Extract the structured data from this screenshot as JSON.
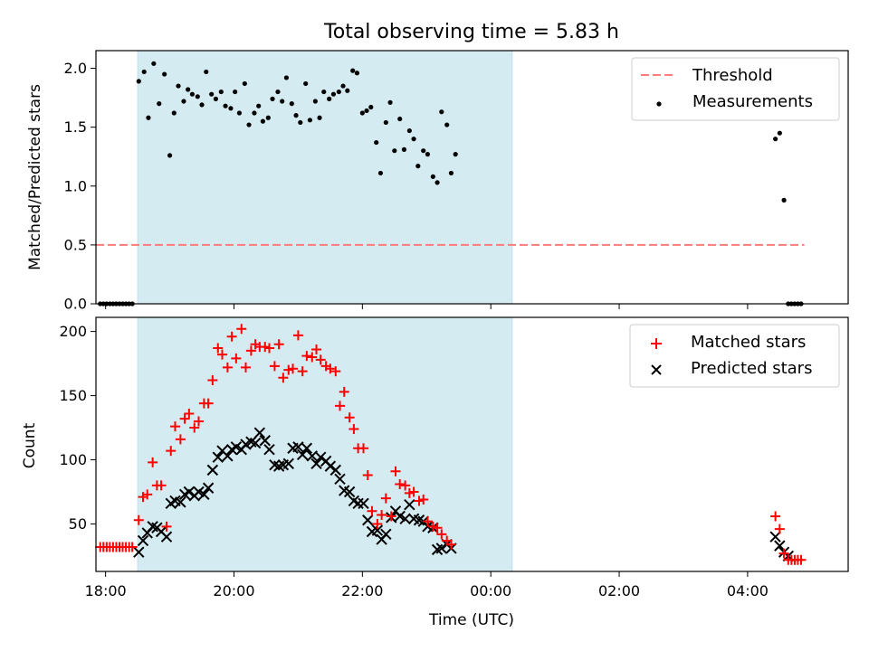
{
  "title": "Total observing time = 5.83 h",
  "xlabel": "Time (UTC)",
  "x_ticks": [
    "18:00",
    "20:00",
    "22:00",
    "00:00",
    "02:00",
    "04:00"
  ],
  "colors": {
    "observing_band": "#d4ebf1",
    "threshold": "#ff7a7a",
    "measurements": "#000000",
    "matched": "#ff0000",
    "predicted": "#000000"
  },
  "chart_data": [
    {
      "type": "scatter",
      "ylabel": "Matched/Predicted stars",
      "xlim": [
        "17:51",
        "05:34"
      ],
      "ylim": [
        0,
        2.15
      ],
      "y_ticks": [
        "0.0",
        "0.5",
        "1.0",
        "1.5",
        "2.0"
      ],
      "legend_position": "upper right",
      "observing_window": [
        "18:30",
        "00:20"
      ],
      "threshold": {
        "name": "Threshold",
        "value": 0.5,
        "x": [
          "17:51",
          "04:53"
        ]
      },
      "series": [
        {
          "name": "Measurements",
          "points": [
            [
              "17:55",
              0
            ],
            [
              "17:58",
              0
            ],
            [
              "18:01",
              0
            ],
            [
              "18:04",
              0
            ],
            [
              "18:07",
              0
            ],
            [
              "18:10",
              0
            ],
            [
              "18:13",
              0
            ],
            [
              "18:16",
              0
            ],
            [
              "18:19",
              0
            ],
            [
              "18:22",
              0
            ],
            [
              "18:25",
              0
            ],
            [
              "18:31",
              1.89
            ],
            [
              "18:36",
              1.97
            ],
            [
              "18:40",
              1.58
            ],
            [
              "18:45",
              2.04
            ],
            [
              "18:50",
              1.7
            ],
            [
              "18:55",
              1.95
            ],
            [
              "19:00",
              1.26
            ],
            [
              "19:04",
              1.62
            ],
            [
              "19:08",
              1.85
            ],
            [
              "19:13",
              1.72
            ],
            [
              "19:17",
              1.82
            ],
            [
              "19:21",
              1.78
            ],
            [
              "19:26",
              1.76
            ],
            [
              "19:30",
              1.69
            ],
            [
              "19:34",
              1.97
            ],
            [
              "19:39",
              1.78
            ],
            [
              "19:43",
              1.74
            ],
            [
              "19:48",
              1.8
            ],
            [
              "19:52",
              1.68
            ],
            [
              "19:57",
              1.66
            ],
            [
              "20:01",
              1.8
            ],
            [
              "20:05",
              1.62
            ],
            [
              "20:10",
              1.87
            ],
            [
              "20:14",
              1.52
            ],
            [
              "20:19",
              1.62
            ],
            [
              "20:23",
              1.68
            ],
            [
              "20:27",
              1.55
            ],
            [
              "20:32",
              1.58
            ],
            [
              "20:36",
              1.74
            ],
            [
              "20:41",
              1.8
            ],
            [
              "20:45",
              1.72
            ],
            [
              "20:49",
              1.92
            ],
            [
              "20:54",
              1.7
            ],
            [
              "20:58",
              1.6
            ],
            [
              "21:02",
              1.54
            ],
            [
              "21:07",
              1.87
            ],
            [
              "21:11",
              1.56
            ],
            [
              "21:16",
              1.72
            ],
            [
              "21:20",
              1.58
            ],
            [
              "21:24",
              1.8
            ],
            [
              "21:29",
              1.74
            ],
            [
              "21:33",
              1.78
            ],
            [
              "21:38",
              1.8
            ],
            [
              "21:42",
              1.85
            ],
            [
              "21:46",
              1.81
            ],
            [
              "21:51",
              1.98
            ],
            [
              "21:55",
              1.96
            ],
            [
              "22:00",
              1.62
            ],
            [
              "22:04",
              1.64
            ],
            [
              "22:08",
              1.67
            ],
            [
              "22:13",
              1.37
            ],
            [
              "22:17",
              1.11
            ],
            [
              "22:22",
              1.54
            ],
            [
              "22:26",
              1.71
            ],
            [
              "22:30",
              1.3
            ],
            [
              "22:35",
              1.57
            ],
            [
              "22:39",
              1.31
            ],
            [
              "22:44",
              1.47
            ],
            [
              "22:48",
              1.4
            ],
            [
              "22:52",
              1.17
            ],
            [
              "22:57",
              1.3
            ],
            [
              "23:01",
              1.27
            ],
            [
              "23:06",
              1.08
            ],
            [
              "23:10",
              1.03
            ],
            [
              "23:14",
              1.63
            ],
            [
              "23:19",
              1.52
            ],
            [
              "23:23",
              1.11
            ],
            [
              "23:27",
              1.27
            ],
            [
              "04:26",
              1.4
            ],
            [
              "04:30",
              1.45
            ],
            [
              "04:34",
              0.88
            ],
            [
              "04:38",
              0
            ],
            [
              "04:41",
              0
            ],
            [
              "04:44",
              0
            ],
            [
              "04:47",
              0
            ],
            [
              "04:50",
              0
            ]
          ]
        }
      ]
    },
    {
      "type": "scatter",
      "ylabel": "Count",
      "xlabel": "Time (UTC)",
      "xlim": [
        "17:51",
        "05:34"
      ],
      "ylim": [
        13,
        211
      ],
      "y_ticks": [
        "50",
        "100",
        "150",
        "200"
      ],
      "legend_position": "upper right",
      "observing_window": [
        "18:30",
        "00:20"
      ],
      "series": [
        {
          "name": "Matched stars",
          "marker": "plus",
          "points": [
            [
              "17:55",
              32
            ],
            [
              "17:58",
              32
            ],
            [
              "18:01",
              32
            ],
            [
              "18:04",
              32
            ],
            [
              "18:07",
              32
            ],
            [
              "18:10",
              32
            ],
            [
              "18:13",
              32
            ],
            [
              "18:16",
              32
            ],
            [
              "18:19",
              32
            ],
            [
              "18:22",
              32
            ],
            [
              "18:25",
              32
            ],
            [
              "18:31",
              53
            ],
            [
              "18:35",
              71
            ],
            [
              "18:39",
              73
            ],
            [
              "18:44",
              98
            ],
            [
              "18:48",
              80
            ],
            [
              "18:52",
              80
            ],
            [
              "18:57",
              48
            ],
            [
              "19:01",
              107
            ],
            [
              "19:05",
              126
            ],
            [
              "19:10",
              116
            ],
            [
              "19:14",
              132
            ],
            [
              "19:18",
              136
            ],
            [
              "19:23",
              125
            ],
            [
              "19:27",
              130
            ],
            [
              "19:32",
              144
            ],
            [
              "19:36",
              144
            ],
            [
              "19:40",
              162
            ],
            [
              "19:45",
              187
            ],
            [
              "19:49",
              182
            ],
            [
              "19:54",
              172
            ],
            [
              "19:58",
              196
            ],
            [
              "20:02",
              179
            ],
            [
              "20:07",
              202
            ],
            [
              "20:11",
              172
            ],
            [
              "20:16",
              185
            ],
            [
              "20:20",
              190
            ],
            [
              "20:24",
              188
            ],
            [
              "20:29",
              188
            ],
            [
              "20:33",
              187
            ],
            [
              "20:38",
              173
            ],
            [
              "20:42",
              190
            ],
            [
              "20:46",
              164
            ],
            [
              "20:51",
              170
            ],
            [
              "20:55",
              171
            ],
            [
              "21:00",
              197
            ],
            [
              "21:04",
              169
            ],
            [
              "21:08",
              181
            ],
            [
              "21:13",
              180
            ],
            [
              "21:17",
              186
            ],
            [
              "21:21",
              178
            ],
            [
              "21:26",
              173
            ],
            [
              "21:30",
              171
            ],
            [
              "21:35",
              169
            ],
            [
              "21:39",
              142
            ],
            [
              "21:43",
              153
            ],
            [
              "21:48",
              133
            ],
            [
              "21:52",
              124
            ],
            [
              "21:56",
              109
            ],
            [
              "22:01",
              109
            ],
            [
              "22:05",
              88
            ],
            [
              "22:09",
              60
            ],
            [
              "22:14",
              50
            ],
            [
              "22:18",
              57
            ],
            [
              "22:22",
              70
            ],
            [
              "22:27",
              56
            ],
            [
              "22:31",
              91
            ],
            [
              "22:35",
              81
            ],
            [
              "22:40",
              80
            ],
            [
              "22:44",
              74
            ],
            [
              "22:48",
              75
            ],
            [
              "22:53",
              68
            ],
            [
              "22:57",
              69
            ],
            [
              "23:01",
              52
            ],
            [
              "23:06",
              48
            ],
            [
              "23:10",
              47
            ],
            [
              "23:14",
              42
            ],
            [
              "23:19",
              37
            ],
            [
              "23:23",
              34
            ],
            [
              "04:26",
              56
            ],
            [
              "04:30",
              46
            ],
            [
              "04:34",
              27
            ],
            [
              "04:38",
              22
            ],
            [
              "04:41",
              22
            ],
            [
              "04:44",
              22
            ],
            [
              "04:47",
              22
            ],
            [
              "04:50",
              22
            ]
          ]
        },
        {
          "name": "Predicted stars",
          "marker": "x",
          "points": [
            [
              "18:31",
              28
            ],
            [
              "18:35",
              37
            ],
            [
              "18:39",
              43
            ],
            [
              "18:44",
              48
            ],
            [
              "18:48",
              47
            ],
            [
              "18:52",
              44
            ],
            [
              "18:57",
              40
            ],
            [
              "19:01",
              66
            ],
            [
              "19:05",
              68
            ],
            [
              "19:10",
              67
            ],
            [
              "19:14",
              73
            ],
            [
              "19:18",
              75
            ],
            [
              "19:23",
              72
            ],
            [
              "19:27",
              75
            ],
            [
              "19:32",
              73
            ],
            [
              "19:36",
              78
            ],
            [
              "19:40",
              92
            ],
            [
              "19:45",
              102
            ],
            [
              "19:49",
              107
            ],
            [
              "19:54",
              103
            ],
            [
              "19:58",
              108
            ],
            [
              "20:02",
              110
            ],
            [
              "20:07",
              108
            ],
            [
              "20:11",
              112
            ],
            [
              "20:16",
              114
            ],
            [
              "20:20",
              113
            ],
            [
              "20:24",
              121
            ],
            [
              "20:29",
              115
            ],
            [
              "20:33",
              108
            ],
            [
              "20:38",
              96
            ],
            [
              "20:42",
              95
            ],
            [
              "20:46",
              96
            ],
            [
              "20:51",
              97
            ],
            [
              "20:55",
              109
            ],
            [
              "21:00",
              110
            ],
            [
              "21:04",
              104
            ],
            [
              "21:08",
              109
            ],
            [
              "21:13",
              103
            ],
            [
              "21:17",
              97
            ],
            [
              "21:21",
              102
            ],
            [
              "21:26",
              99
            ],
            [
              "21:30",
              95
            ],
            [
              "21:35",
              92
            ],
            [
              "21:39",
              85
            ],
            [
              "21:43",
              76
            ],
            [
              "21:48",
              75
            ],
            [
              "21:52",
              68
            ],
            [
              "21:56",
              66
            ],
            [
              "22:01",
              66
            ],
            [
              "22:05",
              53
            ],
            [
              "22:09",
              44
            ],
            [
              "22:14",
              45
            ],
            [
              "22:18",
              38
            ],
            [
              "22:22",
              42
            ],
            [
              "22:27",
              55
            ],
            [
              "22:31",
              60
            ],
            [
              "22:35",
              56
            ],
            [
              "22:40",
              54
            ],
            [
              "22:44",
              65
            ],
            [
              "22:48",
              54
            ],
            [
              "22:53",
              53
            ],
            [
              "22:57",
              52
            ],
            [
              "23:01",
              48
            ],
            [
              "23:06",
              47
            ],
            [
              "23:10",
              30
            ],
            [
              "23:14",
              31
            ],
            [
              "23:19",
              34
            ],
            [
              "23:23",
              31
            ],
            [
              "04:26",
              40
            ],
            [
              "04:30",
              33
            ],
            [
              "04:34",
              28
            ],
            [
              "04:38",
              25
            ]
          ]
        }
      ]
    }
  ]
}
